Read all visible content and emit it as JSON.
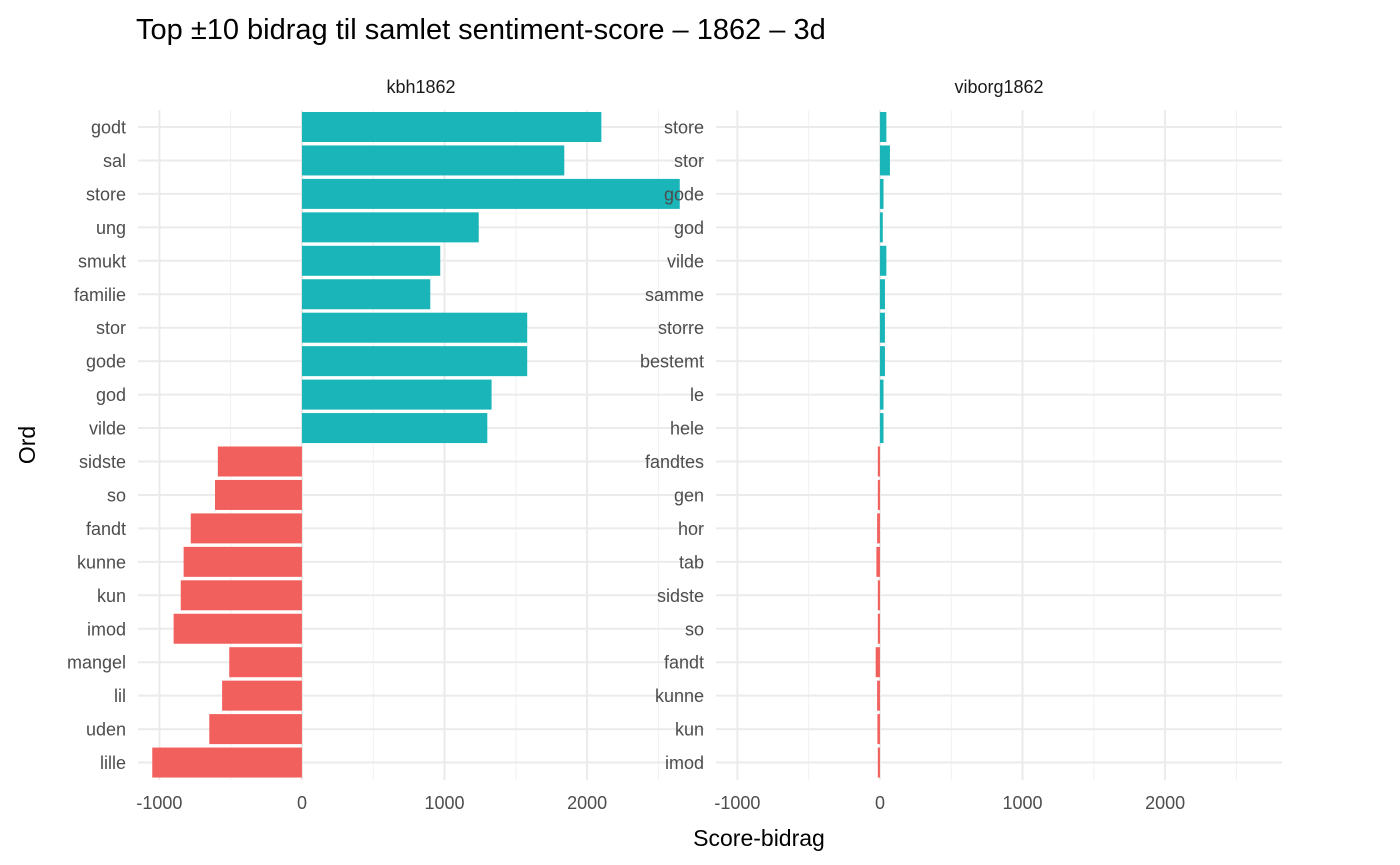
{
  "chart_data": {
    "type": "bar",
    "orientation": "horizontal",
    "title": "Top ±10 bidrag til samlet sentiment-score – 1862 – 3d",
    "xlabel": "Score-bidrag",
    "ylabel": "Ord",
    "xlim": [
      -1150,
      2820
    ],
    "xticks": [
      -1000,
      0,
      1000,
      2000
    ],
    "xtick_labels": [
      "-1000",
      "0",
      "1000",
      "2000"
    ],
    "grid": true,
    "legend": "none",
    "colors": {
      "positive": "#1AB5B9",
      "negative": "#F2605D",
      "grid": "#ebebeb"
    },
    "panels": [
      {
        "name": "kbh1862",
        "categories": [
          "godt",
          "sal",
          "store",
          "ung",
          "smukt",
          "familie",
          "stor",
          "gode",
          "god",
          "vilde",
          "sidste",
          "so",
          "fandt",
          "kunne",
          "kun",
          "imod",
          "mangel",
          "lil",
          "uden",
          "lille"
        ],
        "values": [
          2100,
          1840,
          2650,
          1240,
          970,
          900,
          1580,
          1580,
          1330,
          1300,
          -590,
          -610,
          -780,
          -830,
          -850,
          -900,
          -510,
          -560,
          -650,
          -1050
        ]
      },
      {
        "name": "viborg1862",
        "categories": [
          "store",
          "stor",
          "gode",
          "god",
          "vilde",
          "samme",
          "storre",
          "bestemt",
          "le",
          "hele",
          "fandtes",
          "gen",
          "hor",
          "tab",
          "sidste",
          "so",
          "fandt",
          "kunne",
          "kun",
          "imod"
        ],
        "values": [
          45,
          70,
          25,
          20,
          45,
          35,
          35,
          35,
          25,
          25,
          -15,
          -15,
          -20,
          -25,
          -15,
          -15,
          -30,
          -20,
          -18,
          -15
        ]
      }
    ]
  }
}
